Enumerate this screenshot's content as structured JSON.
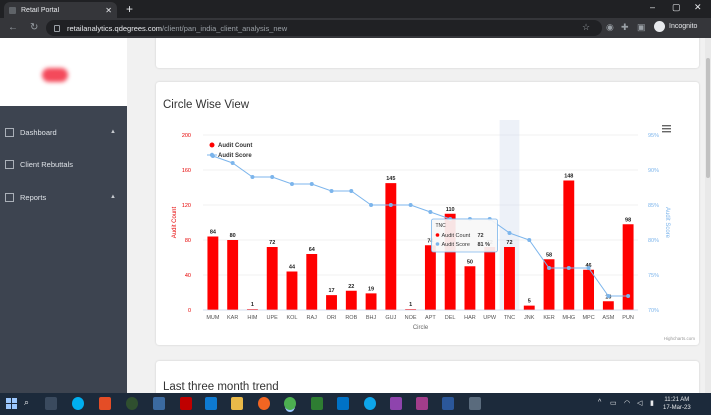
{
  "browser": {
    "tab_title": "Retail Portal",
    "url_host": "retailanalytics.qdegrees.com",
    "url_path": "/client/pan_india_client_analysis_new",
    "profile_label": "Incognito"
  },
  "sidebar": {
    "items": [
      {
        "label": "Dashboard",
        "icon": "dashboard-icon",
        "has_caret": true
      },
      {
        "label": "Client Rebuttals",
        "icon": "rebuttals-icon",
        "has_caret": false
      },
      {
        "label": "Reports",
        "icon": "reports-icon",
        "has_caret": true
      }
    ]
  },
  "main": {
    "card_title": "Circle Wise View",
    "next_card_title": "Last three month trend"
  },
  "chart_data": {
    "type": "bar",
    "title": "",
    "xlabel": "Circle",
    "ylabel": "Audit Count",
    "y2label": "Audit Score",
    "ylim": [
      0,
      200
    ],
    "y2lim": [
      70,
      95
    ],
    "y_ticks": [
      0,
      40,
      80,
      120,
      160,
      200
    ],
    "y2_ticks": [
      "70%",
      "75%",
      "80%",
      "85%",
      "90%",
      "95%"
    ],
    "categories": [
      "MUM",
      "KAR",
      "HIM",
      "UPE",
      "KOL",
      "RAJ",
      "ORI",
      "ROB",
      "BHJ",
      "GUJ",
      "NOE",
      "APT",
      "DEL",
      "HAR",
      "UPW",
      "TNC",
      "JNK",
      "KER",
      "MHG",
      "MPC",
      "ASM",
      "PUN"
    ],
    "series": [
      {
        "name": "Audit Count",
        "type": "bar",
        "color": "#ff0000",
        "values": [
          84,
          80,
          1,
          72,
          44,
          64,
          17,
          22,
          19,
          145,
          1,
          74,
          110,
          50,
          72,
          72,
          5,
          58,
          148,
          46,
          10,
          98
        ]
      },
      {
        "name": "Audit Score",
        "type": "line",
        "color": "#7cb5ec",
        "values": [
          92,
          91,
          89,
          89,
          88,
          88,
          87,
          87,
          85,
          85,
          85,
          84,
          83,
          83,
          83,
          81,
          80,
          76,
          76,
          76,
          72,
          72
        ]
      }
    ],
    "legend_position": "top-left",
    "tooltip": {
      "category": "TNC",
      "count_label": "Audit Count",
      "count_value": "72",
      "score_label": "Audit Score",
      "score_value": "81 %"
    },
    "credit": "Highcharts.com"
  },
  "taskbar": {
    "time": "11:21 AM",
    "date": "17-Mar-23"
  }
}
